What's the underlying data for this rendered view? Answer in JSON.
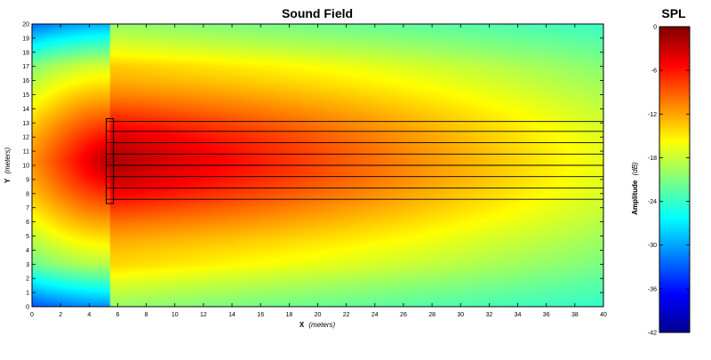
{
  "plot": {
    "title": "Sound Field",
    "xlabel": "X",
    "xlabel_unit": "(meters)",
    "ylabel": "Y",
    "ylabel_unit": "(meters)"
  },
  "colorbar": {
    "title": "SPL",
    "label": "Amplitude",
    "label_unit": "(dB)"
  },
  "chart_data": [
    {
      "type": "heatmap",
      "title": "Sound Field",
      "xlabel": "X (meters)",
      "ylabel": "Y (meters)",
      "xlim": [
        0,
        40
      ],
      "ylim": [
        0,
        20
      ],
      "x_ticks": [
        0,
        2,
        4,
        6,
        8,
        10,
        12,
        14,
        16,
        18,
        20,
        22,
        24,
        26,
        28,
        30,
        32,
        34,
        36,
        38,
        40
      ],
      "y_ticks": [
        0,
        1,
        2,
        3,
        4,
        5,
        6,
        7,
        8,
        9,
        10,
        11,
        12,
        13,
        14,
        15,
        16,
        17,
        18,
        19,
        20
      ],
      "colormap": "jet",
      "color_range_db": [
        -42,
        0
      ],
      "source_array": {
        "speaker_column_x": [
          5.2,
          5.7
        ],
        "speaker_column_y": [
          7.3,
          13.3
        ],
        "speaker_rows_y": [
          7.6,
          8.4,
          9.2,
          10.0,
          10.8,
          11.6,
          12.4,
          13.1
        ]
      },
      "beam_lines": [
        {
          "x": [
            5.7,
            40
          ],
          "y": 13.1
        },
        {
          "x": [
            5.7,
            40
          ],
          "y": 12.4
        },
        {
          "x": [
            5.7,
            40
          ],
          "y": 11.6
        },
        {
          "x": [
            5.7,
            40
          ],
          "y": 10.8
        },
        {
          "x": [
            5.7,
            40
          ],
          "y": 10.0
        },
        {
          "x": [
            5.7,
            40
          ],
          "y": 9.2
        },
        {
          "x": [
            5.7,
            40
          ],
          "y": 8.4
        },
        {
          "x": [
            5.7,
            40
          ],
          "y": 7.6
        }
      ]
    },
    {
      "type": "heatmap",
      "title": "SPL",
      "ylabel": "Amplitude (dB)",
      "ylim": [
        -42,
        0
      ],
      "ticks": [
        0,
        -6,
        -12,
        -18,
        -24,
        -30,
        -36,
        -42
      ],
      "colormap": "jet"
    }
  ]
}
